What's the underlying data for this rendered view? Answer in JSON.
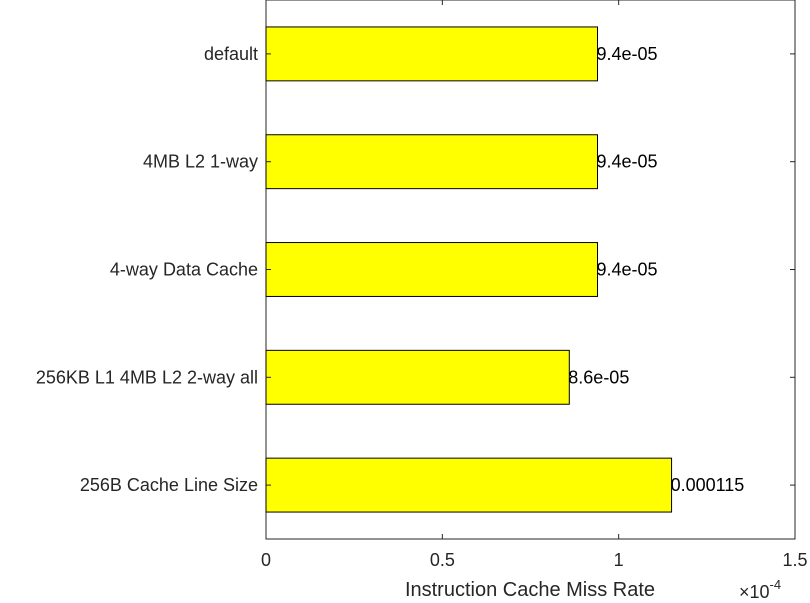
{
  "chart_data": {
    "type": "bar",
    "orientation": "horizontal",
    "categories": [
      "default",
      "4MB L2 1-way",
      "4-way Data Cache",
      "256KB L1 4MB L2 2-way all",
      "256B Cache Line Size"
    ],
    "values": [
      9.4e-05,
      9.4e-05,
      9.4e-05,
      8.6e-05,
      0.000115
    ],
    "data_labels": [
      "9.4e-05",
      "9.4e-05",
      "9.4e-05",
      "8.6e-05",
      "0.000115"
    ],
    "xlabel": "Instruction Cache Miss Rate",
    "xlim": [
      0,
      0.00015
    ],
    "x_ticks": [
      0,
      5e-05,
      0.0001,
      0.00015
    ],
    "x_tick_labels": [
      "0",
      "0.5",
      "1",
      "1.5"
    ],
    "x_exponent_label": "×10",
    "x_exponent": "-4",
    "grid": false,
    "bar_color": "#ffff00",
    "bar_edge_color": "#000000"
  }
}
